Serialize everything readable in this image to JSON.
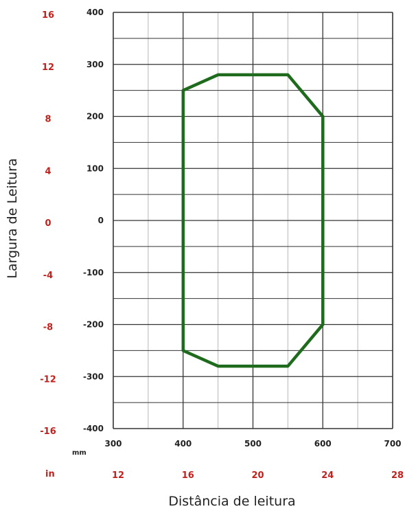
{
  "chart_data": {
    "type": "line",
    "title": "",
    "xlabel": "Distância de leitura",
    "ylabel": "Largura de Leitura",
    "x_unit": "mm",
    "x_secondary_unit": "in",
    "xlim": [
      300,
      700
    ],
    "ylim": [
      -400,
      400
    ],
    "x_major_ticks": [
      300,
      400,
      500,
      600,
      700
    ],
    "y_major_ticks": [
      400,
      300,
      200,
      100,
      0,
      -100,
      -200,
      -300,
      -400
    ],
    "x_ticks_in": [
      {
        "at": 300,
        "label": "12"
      },
      {
        "at": 400,
        "label": "16"
      },
      {
        "at": 500,
        "label": "20"
      },
      {
        "at": 600,
        "label": "24"
      },
      {
        "at": 700,
        "label": "28"
      }
    ],
    "y_ticks_in": [
      {
        "at": 400,
        "label": "16"
      },
      {
        "at": 300,
        "label": "12"
      },
      {
        "at": 200,
        "label": "8"
      },
      {
        "at": 100,
        "label": "4"
      },
      {
        "at": 0,
        "label": "0"
      },
      {
        "at": -100,
        "label": "-4"
      },
      {
        "at": -200,
        "label": "-8"
      },
      {
        "at": -300,
        "label": "-12"
      },
      {
        "at": -400,
        "label": "-16"
      }
    ],
    "grid": true,
    "legend": "none",
    "series": [
      {
        "color": "#1e6b1e",
        "closed": true,
        "points": [
          [
            400,
            250
          ],
          [
            450,
            280
          ],
          [
            550,
            280
          ],
          [
            600,
            200
          ],
          [
            600,
            -200
          ],
          [
            550,
            -280
          ],
          [
            450,
            -280
          ],
          [
            400,
            -250
          ],
          [
            400,
            250
          ]
        ]
      }
    ],
    "colors": {
      "inch_labels": "#c0221e",
      "mm_labels": "#222222",
      "grid_major": "#333333",
      "grid_minor": "#b8b8b8"
    }
  }
}
